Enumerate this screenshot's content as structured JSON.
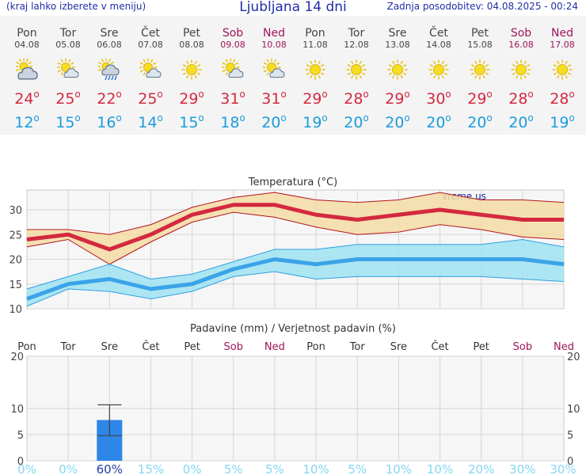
{
  "header": {
    "menu_hint": "(kraj lahko izberete v meniju)",
    "title": "Ljubljana 14 dni",
    "updated": "Zadnja posodobitev: 04.08.2025 - 00:24"
  },
  "days": [
    {
      "name": "Pon",
      "date": "04.08",
      "weekend": false,
      "icon": "partly-cloudy-icon",
      "max": "24",
      "min": "12"
    },
    {
      "name": "Tor",
      "date": "05.08",
      "weekend": false,
      "icon": "sun-cloud-icon",
      "max": "25",
      "min": "15"
    },
    {
      "name": "Sre",
      "date": "06.08",
      "weekend": false,
      "icon": "sun-cloud-rain-icon",
      "max": "22",
      "min": "16"
    },
    {
      "name": "Čet",
      "date": "07.08",
      "weekend": false,
      "icon": "sun-cloud-icon",
      "max": "25",
      "min": "14"
    },
    {
      "name": "Pet",
      "date": "08.08",
      "weekend": false,
      "icon": "sun-icon",
      "max": "29",
      "min": "15"
    },
    {
      "name": "Sob",
      "date": "09.08",
      "weekend": true,
      "icon": "sun-cloud-icon",
      "max": "31",
      "min": "18"
    },
    {
      "name": "Ned",
      "date": "10.08",
      "weekend": true,
      "icon": "sun-cloud-icon",
      "max": "31",
      "min": "20"
    },
    {
      "name": "Pon",
      "date": "11.08",
      "weekend": false,
      "icon": "sun-icon",
      "max": "29",
      "min": "19"
    },
    {
      "name": "Tor",
      "date": "12.08",
      "weekend": false,
      "icon": "sun-icon",
      "max": "28",
      "min": "20"
    },
    {
      "name": "Sre",
      "date": "13.08",
      "weekend": false,
      "icon": "sun-icon",
      "max": "29",
      "min": "20"
    },
    {
      "name": "Čet",
      "date": "14.08",
      "weekend": false,
      "icon": "sun-icon",
      "max": "30",
      "min": "20"
    },
    {
      "name": "Pet",
      "date": "15.08",
      "weekend": false,
      "icon": "sun-icon",
      "max": "29",
      "min": "20"
    },
    {
      "name": "Sob",
      "date": "16.08",
      "weekend": true,
      "icon": "sun-icon",
      "max": "28",
      "min": "20"
    },
    {
      "name": "Ned",
      "date": "17.08",
      "weekend": true,
      "icon": "sun-icon",
      "max": "28",
      "min": "19"
    }
  ],
  "degree_symbol": "o",
  "colors": {
    "max": "#d3293f",
    "min": "#1a9cdc",
    "weekend": "#a0145a",
    "bar": "#2e86e8",
    "pct": "#85d6f2"
  },
  "chart_data": [
    {
      "type": "line",
      "title": "Temperatura (°C)",
      "watermark": "vreme.us",
      "categories": [
        "Pon",
        "Tor",
        "Sre",
        "Čet",
        "Pet",
        "Sob",
        "Ned",
        "Pon",
        "Tor",
        "Sre",
        "Čet",
        "Pet",
        "Sob",
        "Ned"
      ],
      "ylim": [
        10,
        34
      ],
      "yticks": [
        10,
        15,
        20,
        25,
        30
      ],
      "series": [
        {
          "name": "max",
          "values": [
            24,
            25,
            22,
            25,
            29,
            31,
            31,
            29,
            28,
            29,
            30,
            29,
            28,
            28
          ],
          "band_low": [
            22.5,
            24,
            19,
            23.5,
            27.5,
            29.5,
            28.5,
            26.5,
            25,
            25.5,
            27,
            26,
            24.5,
            24
          ],
          "band_high": [
            26,
            26,
            25,
            27,
            30.5,
            32.5,
            33.5,
            32,
            31.5,
            32,
            33.5,
            32,
            32,
            31.5
          ]
        },
        {
          "name": "min",
          "values": [
            12,
            15,
            16,
            14,
            15,
            18,
            20,
            19,
            20,
            20,
            20,
            20,
            20,
            19
          ],
          "band_low": [
            10.5,
            14,
            13.5,
            12,
            13.5,
            16.5,
            17.5,
            16,
            16.5,
            16.5,
            16.5,
            16.5,
            16,
            15.5
          ],
          "band_high": [
            14,
            16.5,
            19,
            16,
            17,
            19.5,
            22,
            22,
            23,
            23,
            23,
            23,
            24,
            22.5
          ]
        }
      ]
    },
    {
      "type": "bar",
      "title": "Padavine (mm) / Verjetnost padavin (%)",
      "categories": [
        "Pon",
        "Tor",
        "Sre",
        "Čet",
        "Pet",
        "Sob",
        "Ned",
        "Pon",
        "Tor",
        "Sre",
        "Čet",
        "Pet",
        "Sob",
        "Ned"
      ],
      "weekend": [
        false,
        false,
        false,
        false,
        false,
        true,
        true,
        false,
        false,
        false,
        false,
        false,
        true,
        true
      ],
      "ylim": [
        0,
        20
      ],
      "yticks": [
        0,
        5,
        10,
        20
      ],
      "values": [
        0,
        0,
        7.8,
        0,
        0,
        0,
        0,
        0,
        0,
        0,
        0,
        0,
        0,
        0
      ],
      "error_low": [
        null,
        null,
        4.8,
        null,
        null,
        null,
        null,
        null,
        null,
        null,
        null,
        null,
        null,
        null
      ],
      "error_high": [
        null,
        null,
        10.7,
        null,
        null,
        null,
        null,
        null,
        null,
        null,
        null,
        null,
        null,
        null
      ],
      "probability": [
        "0%",
        "0%",
        "60%",
        "15%",
        "0%",
        "5%",
        "5%",
        "10%",
        "5%",
        "10%",
        "10%",
        "20%",
        "30%",
        "30%"
      ]
    }
  ]
}
